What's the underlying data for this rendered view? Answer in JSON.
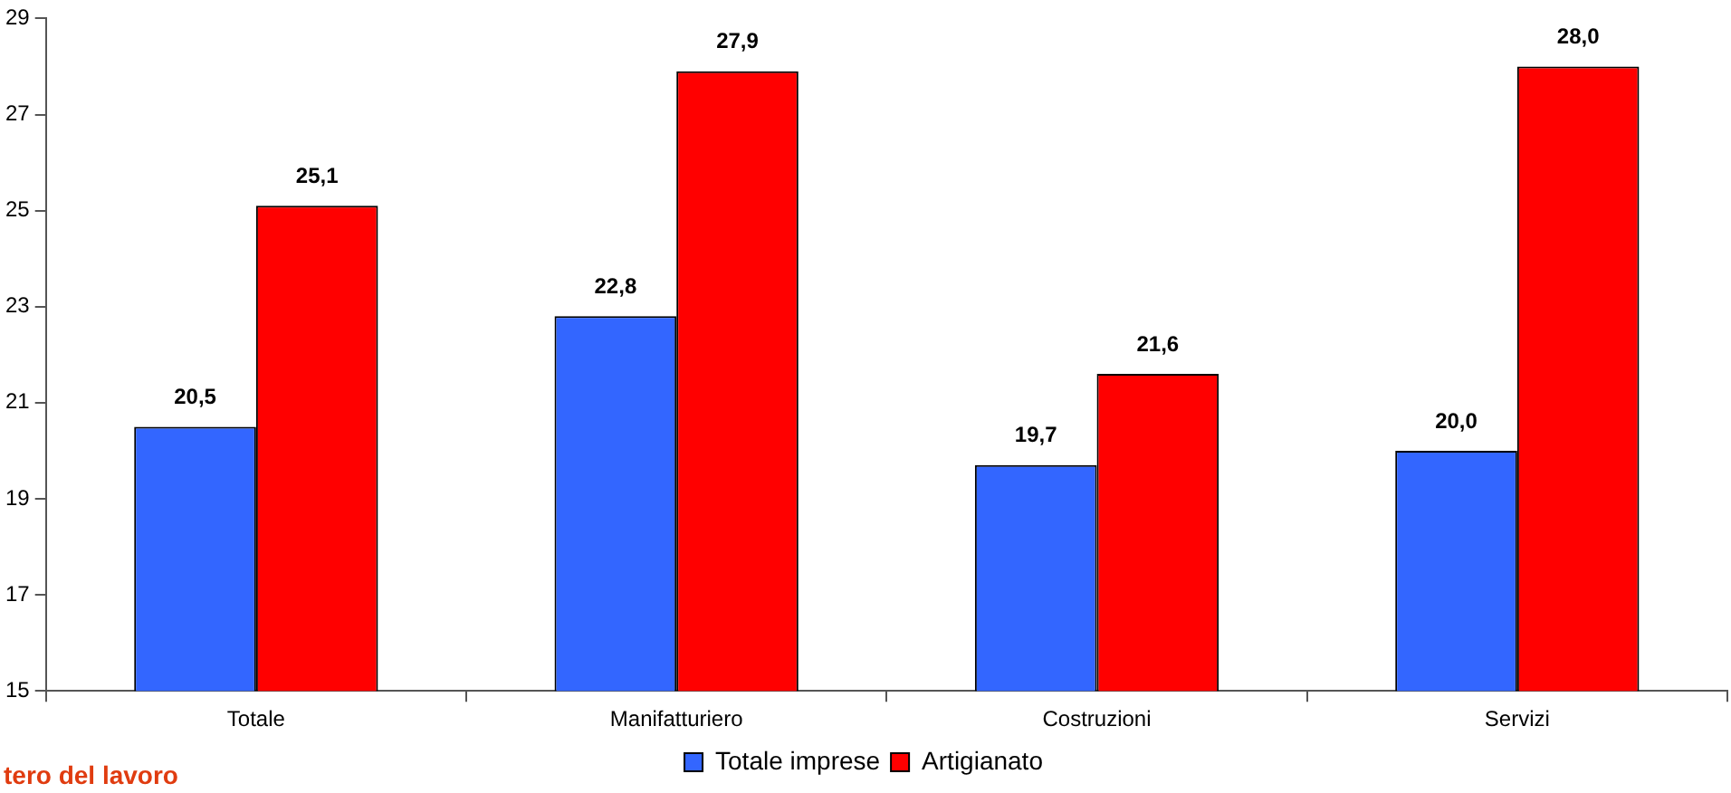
{
  "chart_data": {
    "type": "bar",
    "categories": [
      "Totale",
      "Manifatturiero",
      "Costruzioni",
      "Servizi"
    ],
    "series": [
      {
        "name": "Totale imprese",
        "color": "#3366ff",
        "values": [
          20.5,
          22.8,
          19.7,
          20.0
        ],
        "value_labels": [
          "20,5",
          "22,8",
          "19,7",
          "20,0"
        ]
      },
      {
        "name": "Artigianato",
        "color": "#ff0000",
        "values": [
          25.1,
          27.9,
          21.6,
          28.0
        ],
        "value_labels": [
          "25,1",
          "27,9",
          "21,6",
          "28,0"
        ]
      }
    ],
    "ylim": [
      15,
      29
    ],
    "yticks": [
      15,
      17,
      19,
      21,
      23,
      25,
      27,
      29
    ],
    "grid": false,
    "legend": "bottom",
    "annotations": [
      "tero del lavoro"
    ]
  }
}
